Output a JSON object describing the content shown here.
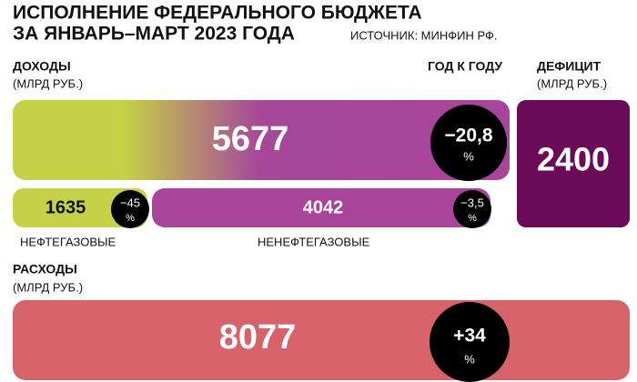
{
  "header": {
    "title_line1": "ИСПОЛНЕНИЕ ФЕДЕРАЛЬНОГО БЮДЖЕТА",
    "title_line2": "ЗА ЯНВАРЬ–МАРТ 2023 ГОДА",
    "source": "ИСТОЧНИК: МИНФИН РФ."
  },
  "revenue": {
    "label": "ДОХОДЫ",
    "unit": "(МЛРД РУБ.)",
    "yoy_label": "ГОД К ГОДУ",
    "total": "5677",
    "total_change": "−20,8",
    "total_change_unit": "%",
    "oil_gas": {
      "value": "1635",
      "change": "−45",
      "change_unit": "%",
      "label": "НЕФТЕГАЗОВЫЕ"
    },
    "non_oil_gas": {
      "value": "4042",
      "change": "−3,5",
      "change_unit": "%",
      "label": "НЕНЕФТЕГАЗОВЫЕ"
    }
  },
  "deficit": {
    "label": "ДЕФИЦИТ",
    "unit": "(МЛРД РУБ.)",
    "value": "2400"
  },
  "expenses": {
    "label": "РАСХОДЫ",
    "unit": "(МЛРД РУБ.)",
    "value": "8077",
    "change": "+34",
    "change_unit": "%"
  }
}
